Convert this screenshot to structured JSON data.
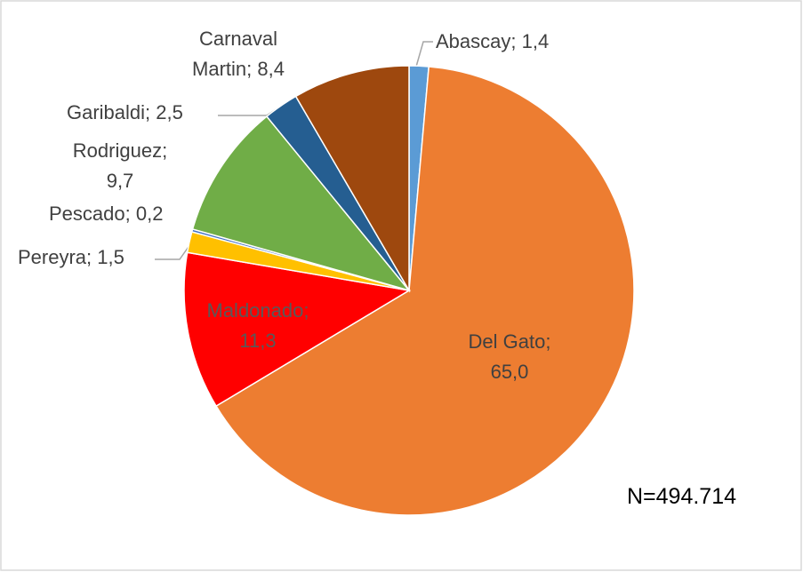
{
  "chart_data": {
    "type": "pie",
    "categories": [
      "Abascay",
      "Del Gato",
      "Maldonado",
      "Pereyra",
      "Pescado",
      "Rodriguez",
      "Garibaldi",
      "Carnaval Martin"
    ],
    "values": [
      1.4,
      65.0,
      11.3,
      1.5,
      0.2,
      9.7,
      2.5,
      8.4
    ],
    "value_labels": [
      "1,4",
      "65,0",
      "11,3",
      "1,5",
      "0,2",
      "9,7",
      "2,5",
      "8,4"
    ],
    "label_separator": "; ",
    "colors": [
      "#5b9bd5",
      "#ed7d31",
      "#ff0000",
      "#ffc000",
      "#4472c4",
      "#70ad47",
      "#255e91",
      "#9e480e"
    ],
    "annotation": "N=494.714"
  }
}
